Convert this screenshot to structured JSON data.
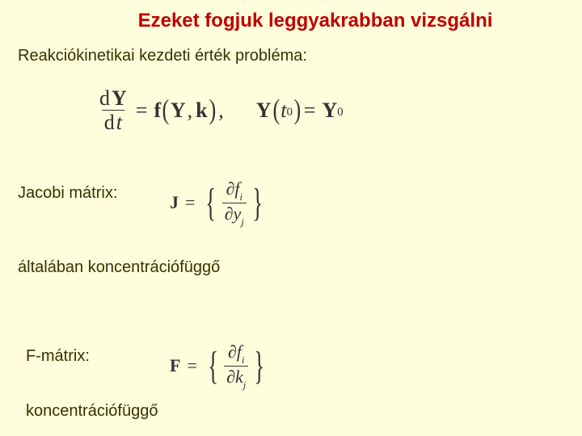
{
  "title": "Ezeket fogjuk leggyakrabban vizsgálni",
  "heading1": "Reakciókinetikai kezdeti érték probléma:",
  "heading2": "Jacobi mátrix:",
  "heading3": "általában koncentrációfüggő",
  "heading4": "F-mátrix:",
  "heading5": "koncentrációfüggő",
  "eq1": {
    "d": "d",
    "Y": "Y",
    "t": "t",
    "eq": "=",
    "f": "f",
    "k": "k",
    "comma1": ",",
    "comma2": ",",
    "lp": "(",
    "rp": ")",
    "t0": "t",
    "zero": "0",
    "Y0sub": "0"
  },
  "eq2": {
    "J": "J",
    "eq": "=",
    "lbrace": "{",
    "rbrace": "}",
    "partial": "∂",
    "f": "f",
    "i": "i",
    "y": "y",
    "j": "j"
  },
  "eq3": {
    "F": "F",
    "eq": "=",
    "lbrace": "{",
    "rbrace": "}",
    "partial": "∂",
    "f": "f",
    "i": "i",
    "k": "k",
    "j": "j"
  },
  "style": {
    "background": "#fefedc",
    "title_color": "#c00000",
    "heading_color": "#333300",
    "eq_color": "#333333",
    "title_fontsize": 24,
    "heading_fontsize": 20,
    "eq1_fontsize": 26,
    "eq_small_fontsize": 22
  }
}
